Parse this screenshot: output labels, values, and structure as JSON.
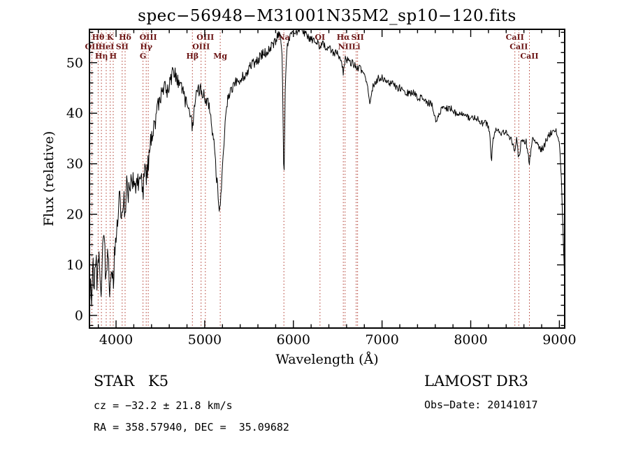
{
  "chart_data": {
    "type": "line",
    "title": "spec−56948−M31001N35M2_sp10−120.fits",
    "xlabel": "Wavelength (Å)",
    "ylabel": "Flux (relative)",
    "xlim": [
      3700,
      9060
    ],
    "ylim": [
      -2.5,
      56.6
    ],
    "x_ticks": [
      4000,
      5000,
      6000,
      7000,
      8000,
      9000
    ],
    "y_ticks": [
      0,
      10,
      20,
      30,
      40,
      50
    ],
    "x_minor_step": 200,
    "y_minor_step": 2,
    "grid": false,
    "legend": "none",
    "line_color": "#000000",
    "marker_line_color": "#b03a2e",
    "marker_label_color": "#6b1414",
    "line_markers": [
      {
        "label": "Hθ",
        "wavelength": 3798,
        "row": 1
      },
      {
        "label": "K",
        "wavelength": 3934,
        "row": 1
      },
      {
        "label": "Hδ",
        "wavelength": 4102,
        "row": 1
      },
      {
        "label": "OIII",
        "wavelength": 4363,
        "row": 1
      },
      {
        "label": "OIII",
        "wavelength": 5007,
        "row": 1
      },
      {
        "label": "Na",
        "wavelength": 5893,
        "row": 1
      },
      {
        "label": "OI",
        "wavelength": 6300,
        "row": 1
      },
      {
        "label": "Hα",
        "wavelength": 6563,
        "row": 1
      },
      {
        "label": "SII",
        "wavelength": 6724,
        "row": 1
      },
      {
        "label": "CaII",
        "wavelength": 8498,
        "row": 1
      },
      {
        "label": "OII",
        "wavelength": 3727,
        "row": 2
      },
      {
        "label": "HeI",
        "wavelength": 3889,
        "row": 2
      },
      {
        "label": "SII",
        "wavelength": 4069,
        "row": 2
      },
      {
        "label": "Hγ",
        "wavelength": 4340,
        "row": 2
      },
      {
        "label": "OIII",
        "wavelength": 4959,
        "row": 2
      },
      {
        "label": "NII",
        "wavelength": 6583,
        "row": 2
      },
      {
        "label": "Li",
        "wavelength": 6708,
        "row": 2
      },
      {
        "label": "CaII",
        "wavelength": 8542,
        "row": 2
      },
      {
        "label": "Hη",
        "wavelength": 3835,
        "row": 3
      },
      {
        "label": "H",
        "wavelength": 3968,
        "row": 3
      },
      {
        "label": "G",
        "wavelength": 4304,
        "row": 3
      },
      {
        "label": "Hβ",
        "wavelength": 4861,
        "row": 3
      },
      {
        "label": "Mg",
        "wavelength": 5175,
        "row": 3
      },
      {
        "label": "CaII",
        "wavelength": 8662,
        "row": 3
      }
    ],
    "spectrum": {
      "x": [
        3700,
        3715,
        3727,
        3740,
        3755,
        3770,
        3785,
        3798,
        3812,
        3825,
        3835,
        3850,
        3865,
        3880,
        3889,
        3902,
        3915,
        3934,
        3950,
        3968,
        3984,
        4000,
        4020,
        4040,
        4060,
        4069,
        4085,
        4102,
        4120,
        4140,
        4160,
        4180,
        4200,
        4220,
        4240,
        4260,
        4280,
        4304,
        4320,
        4340,
        4363,
        4385,
        4410,
        4440,
        4470,
        4500,
        4530,
        4560,
        4590,
        4620,
        4650,
        4680,
        4710,
        4740,
        4770,
        4800,
        4830,
        4861,
        4890,
        4920,
        4950,
        4980,
        5010,
        5040,
        5070,
        5100,
        5130,
        5160,
        5175,
        5195,
        5215,
        5240,
        5265,
        5300,
        5340,
        5380,
        5420,
        5460,
        5500,
        5540,
        5580,
        5620,
        5660,
        5700,
        5740,
        5780,
        5820,
        5855,
        5875,
        5893,
        5910,
        5930,
        5960,
        6000,
        6040,
        6080,
        6120,
        6160,
        6200,
        6240,
        6280,
        6300,
        6330,
        6370,
        6410,
        6450,
        6490,
        6530,
        6563,
        6590,
        6630,
        6670,
        6710,
        6750,
        6790,
        6830,
        6865,
        6890,
        6920,
        6960,
        7010,
        7060,
        7110,
        7160,
        7210,
        7260,
        7310,
        7360,
        7410,
        7460,
        7510,
        7560,
        7600,
        7618,
        7640,
        7680,
        7730,
        7780,
        7830,
        7880,
        7930,
        7980,
        8030,
        8080,
        8130,
        8180,
        8215,
        8232,
        8250,
        8290,
        8330,
        8370,
        8410,
        8450,
        8480,
        8498,
        8515,
        8542,
        8565,
        8600,
        8630,
        8662,
        8685,
        8710,
        8740,
        8780,
        8820,
        8860,
        8900,
        8940,
        8975,
        9000,
        9015,
        9030,
        9045,
        9062,
        9078
      ],
      "y": [
        1,
        7,
        3,
        9,
        5,
        12,
        7,
        9,
        13,
        8,
        5,
        12,
        15,
        9,
        7,
        13,
        9,
        4,
        10,
        6,
        13,
        16,
        20,
        23,
        20,
        18,
        24,
        19,
        26,
        24,
        27,
        25,
        27,
        24,
        27,
        25,
        28,
        24,
        30,
        27,
        30,
        34,
        36,
        38,
        41,
        43,
        44,
        45,
        44,
        47,
        48,
        47,
        46,
        45,
        43,
        42,
        41,
        37,
        43,
        44,
        45,
        44,
        43,
        42,
        39,
        35,
        28,
        22,
        21,
        27,
        34,
        41,
        43,
        45,
        46,
        46,
        47,
        48,
        49,
        50,
        50,
        51,
        52,
        52,
        53,
        54,
        55,
        56,
        50,
        25,
        46,
        53,
        55,
        56,
        56,
        57,
        56,
        55,
        55,
        54,
        54,
        53,
        54,
        53,
        53,
        52,
        52,
        51,
        48,
        51,
        50,
        50,
        49,
        49,
        48,
        46,
        42,
        45,
        46,
        47,
        47,
        46,
        46,
        45,
        45,
        44,
        44,
        44,
        43,
        43,
        42,
        42,
        39,
        38,
        40,
        41,
        41,
        41,
        40,
        40,
        40,
        39,
        39,
        39,
        38,
        38,
        36,
        30,
        35,
        37,
        36,
        36,
        36,
        35,
        34,
        32,
        35,
        31,
        34,
        35,
        34,
        30,
        34,
        35,
        34,
        33,
        33,
        35,
        36,
        37,
        36,
        34,
        30,
        23,
        14,
        6,
        1
      ]
    },
    "noise_profile": [
      [
        3700,
        3.0
      ],
      [
        4200,
        2.2
      ],
      [
        4700,
        1.5
      ],
      [
        5200,
        1.2
      ],
      [
        5700,
        1.0
      ],
      [
        6300,
        0.8
      ],
      [
        7000,
        0.7
      ],
      [
        8000,
        0.6
      ],
      [
        8600,
        0.8
      ],
      [
        9100,
        0.5
      ]
    ],
    "noise_seed": 987654321
  },
  "footer": {
    "classification": "STAR",
    "subclass": "K5",
    "survey": "LAMOST DR3",
    "cz": "cz = −32.2 ± 21.8 km/s",
    "obs_date": "Obs−Date: 20141017",
    "ra_dec": "RA = 358.57940, DEC =  35.09682"
  }
}
